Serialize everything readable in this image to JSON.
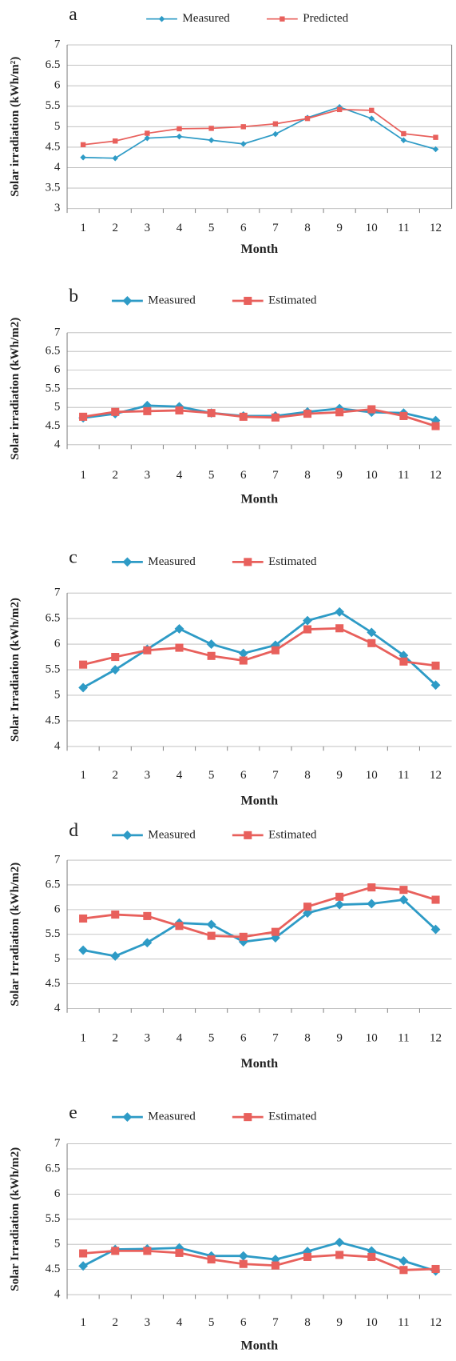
{
  "chart_data": [
    {
      "type": "line",
      "panel": "a",
      "y_label": "Solar irradiation (kWh/m²)",
      "x_label": "Month",
      "categories": [
        1,
        2,
        3,
        4,
        5,
        6,
        7,
        8,
        9,
        10,
        11,
        12
      ],
      "series": [
        {
          "name": "Measured",
          "color": "#2e9bc6",
          "marker": "diamond",
          "values": [
            4.25,
            4.23,
            4.72,
            4.76,
            4.67,
            4.58,
            4.82,
            5.22,
            5.48,
            5.2,
            4.67,
            4.45
          ]
        },
        {
          "name": "Predicted",
          "color": "#e8605c",
          "marker": "square",
          "values": [
            4.56,
            4.65,
            4.84,
            4.95,
            4.96,
            5.0,
            5.07,
            5.2,
            5.42,
            5.4,
            4.83,
            4.74
          ]
        }
      ],
      "ylim": [
        3,
        7
      ],
      "yticks": [
        3,
        3.5,
        4,
        4.5,
        5,
        5.5,
        6,
        6.5,
        7
      ],
      "grid": true
    },
    {
      "type": "line",
      "panel": "b",
      "y_label": "Solar irradiation (kWh/m2)",
      "x_label": "Month",
      "categories": [
        1,
        2,
        3,
        4,
        5,
        6,
        7,
        8,
        9,
        10,
        11,
        12
      ],
      "series": [
        {
          "name": "Measured",
          "color": "#2e9bc6",
          "marker": "diamond",
          "values": [
            4.72,
            4.83,
            5.05,
            5.02,
            4.85,
            4.77,
            4.77,
            4.88,
            4.97,
            4.87,
            4.85,
            4.65
          ]
        },
        {
          "name": "Estimated",
          "color": "#e8605c",
          "marker": "square",
          "values": [
            4.75,
            4.88,
            4.9,
            4.92,
            4.85,
            4.75,
            4.73,
            4.83,
            4.87,
            4.95,
            4.77,
            4.5
          ]
        }
      ],
      "ylim": [
        4,
        7
      ],
      "yticks": [
        4,
        4.5,
        5,
        5.5,
        6,
        6.5,
        7
      ],
      "grid": true
    },
    {
      "type": "line",
      "panel": "c",
      "y_label": "Solar Irradiation (kWh/m2)",
      "x_label": "Month",
      "categories": [
        1,
        2,
        3,
        4,
        5,
        6,
        7,
        8,
        9,
        10,
        11,
        12
      ],
      "series": [
        {
          "name": "Measured",
          "color": "#2e9bc6",
          "marker": "diamond",
          "values": [
            5.15,
            5.5,
            5.9,
            6.3,
            6.0,
            5.82,
            5.98,
            6.46,
            6.63,
            6.23,
            5.78,
            5.2
          ]
        },
        {
          "name": "Estimated",
          "color": "#e8605c",
          "marker": "square",
          "values": [
            5.6,
            5.75,
            5.88,
            5.93,
            5.77,
            5.68,
            5.88,
            6.29,
            6.31,
            6.02,
            5.66,
            5.58
          ]
        }
      ],
      "ylim": [
        4,
        7
      ],
      "yticks": [
        4,
        4.5,
        5,
        5.5,
        6,
        6.5,
        7
      ],
      "grid": true
    },
    {
      "type": "line",
      "panel": "d",
      "y_label": "Solar Irradiation (kWh/m2)",
      "x_label": "Month",
      "categories": [
        1,
        2,
        3,
        4,
        5,
        6,
        7,
        8,
        9,
        10,
        11,
        12
      ],
      "series": [
        {
          "name": "Measured",
          "color": "#2e9bc6",
          "marker": "diamond",
          "values": [
            5.18,
            5.06,
            5.33,
            5.73,
            5.7,
            5.35,
            5.43,
            5.93,
            6.1,
            6.12,
            6.2,
            5.6
          ]
        },
        {
          "name": "Estimated",
          "color": "#e8605c",
          "marker": "square",
          "values": [
            5.82,
            5.9,
            5.87,
            5.67,
            5.47,
            5.45,
            5.55,
            6.06,
            6.26,
            6.45,
            6.4,
            6.2
          ]
        }
      ],
      "ylim": [
        4,
        7
      ],
      "yticks": [
        4,
        4.5,
        5,
        5.5,
        6,
        6.5,
        7
      ],
      "grid": true
    },
    {
      "type": "line",
      "panel": "e",
      "y_label": "Solar Irradiation (kWh/m2)",
      "x_label": "Month",
      "categories": [
        1,
        2,
        3,
        4,
        5,
        6,
        7,
        8,
        9,
        10,
        11,
        12
      ],
      "series": [
        {
          "name": "Measured",
          "color": "#2e9bc6",
          "marker": "diamond",
          "values": [
            4.57,
            4.9,
            4.91,
            4.93,
            4.77,
            4.77,
            4.7,
            4.86,
            5.04,
            4.87,
            4.67,
            4.47
          ]
        },
        {
          "name": "Estimated",
          "color": "#e8605c",
          "marker": "square",
          "values": [
            4.82,
            4.87,
            4.87,
            4.83,
            4.7,
            4.61,
            4.58,
            4.75,
            4.79,
            4.75,
            4.49,
            4.51
          ]
        }
      ],
      "ylim": [
        4,
        7
      ],
      "yticks": [
        4,
        4.5,
        5,
        5.5,
        6,
        6.5,
        7
      ],
      "grid": true
    }
  ]
}
